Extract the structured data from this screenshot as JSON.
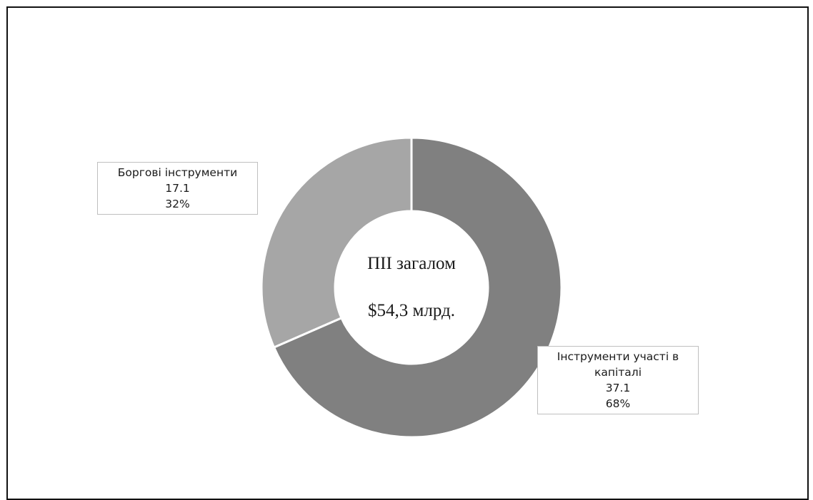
{
  "chart_data": {
    "type": "pie",
    "subtype": "donut",
    "center_title": "ПІІ загалом",
    "center_total": "$54,3 млрд.",
    "slices": [
      {
        "name_lines": [
          "Інструменти участі в",
          "капіталі"
        ],
        "value": 37.1,
        "value_label": "37.1",
        "percent": 68,
        "percent_label": "68%",
        "color": "#808080"
      },
      {
        "name_lines": [
          "Боргові інструменти"
        ],
        "value": 17.1,
        "value_label": "17.1",
        "percent": 32,
        "percent_label": "32%",
        "color": "#a6a6a6"
      }
    ],
    "legend": "none",
    "start_angle": "top"
  }
}
